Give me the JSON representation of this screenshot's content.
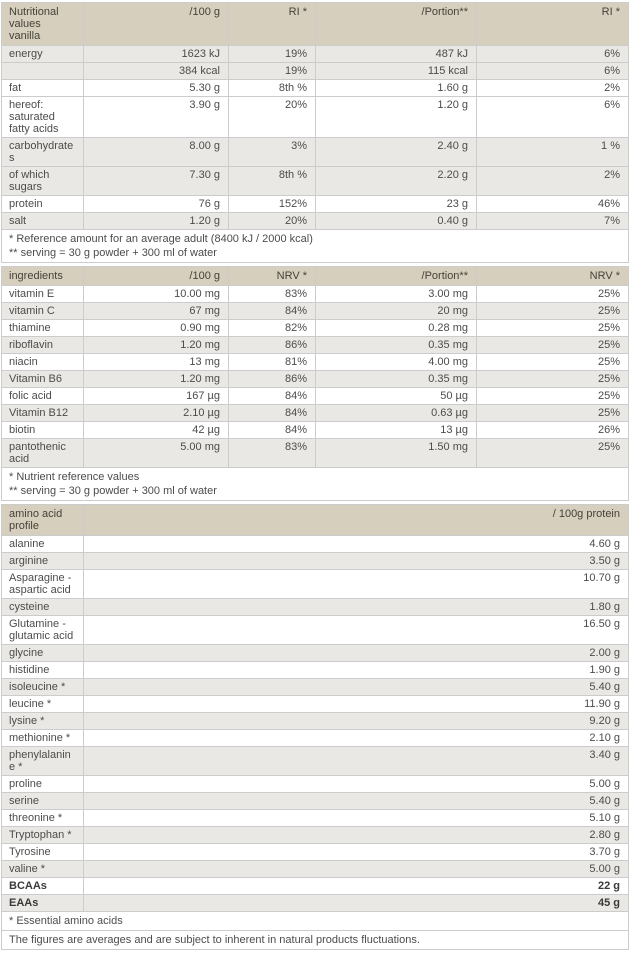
{
  "colors": {
    "header_bg": "#d7cfbd",
    "stripe_bg": "#e9e8e4",
    "row_bg": "#ffffff",
    "border": "#cccccc",
    "text": "#4c4c4c"
  },
  "tables": [
    {
      "name": "nutritional-values",
      "headers": [
        "Nutritional values vanilla",
        "/100 g",
        "RI *",
        "/Portion**",
        "RI *"
      ],
      "rows": [
        {
          "cells": [
            "energy",
            "1623 kJ",
            "19%",
            "487 kJ",
            "6%"
          ],
          "shaded": true,
          "bold": false
        },
        {
          "cells": [
            "",
            "384 kcal",
            "19%",
            "115 kcal",
            "6%"
          ],
          "shaded": true,
          "bold": false
        },
        {
          "cells": [
            "fat",
            "5.30 g",
            "8th %",
            "1.60 g",
            "2%"
          ],
          "shaded": false,
          "bold": false
        },
        {
          "cells": [
            "hereof: saturated fatty acids",
            "3.90 g",
            "20%",
            "1.20 g",
            "6%"
          ],
          "shaded": false,
          "bold": false
        },
        {
          "cells": [
            "carbohydrates",
            "8.00 g",
            "3%",
            "2.40 g",
            "1 %"
          ],
          "shaded": true,
          "bold": false
        },
        {
          "cells": [
            "of which sugars",
            "7.30 g",
            "8th %",
            "2.20 g",
            "2%"
          ],
          "shaded": true,
          "bold": false
        },
        {
          "cells": [
            "protein",
            "76 g",
            "152%",
            "23 g",
            "46%"
          ],
          "shaded": false,
          "bold": false
        },
        {
          "cells": [
            "salt",
            "1.20 g",
            "20%",
            "0.40 g",
            "7%"
          ],
          "shaded": true,
          "bold": false
        }
      ],
      "footnotes": [
        "* Reference amount for an average adult (8400 kJ / 2000 kcal)",
        "** serving = 30 g powder + 300 ml of water"
      ]
    },
    {
      "name": "ingredients",
      "headers": [
        "ingredients",
        "/100 g",
        "NRV *",
        "/Portion**",
        "NRV *"
      ],
      "rows": [
        {
          "cells": [
            "vitamin E",
            "10.00 mg",
            "83%",
            "3.00 mg",
            "25%"
          ],
          "shaded": false,
          "bold": false
        },
        {
          "cells": [
            "vitamin C",
            "67 mg",
            "84%",
            "20 mg",
            "25%"
          ],
          "shaded": true,
          "bold": false
        },
        {
          "cells": [
            "thiamine",
            "0.90 mg",
            "82%",
            "0.28 mg",
            "25%"
          ],
          "shaded": false,
          "bold": false
        },
        {
          "cells": [
            "riboflavin",
            "1.20 mg",
            "86%",
            "0.35 mg",
            "25%"
          ],
          "shaded": true,
          "bold": false
        },
        {
          "cells": [
            "niacin",
            "13 mg",
            "81%",
            "4.00 mg",
            "25%"
          ],
          "shaded": false,
          "bold": false
        },
        {
          "cells": [
            "Vitamin B6",
            "1.20 mg",
            "86%",
            "0.35 mg",
            "25%"
          ],
          "shaded": true,
          "bold": false
        },
        {
          "cells": [
            "folic acid",
            "167 µg",
            "84%",
            "50 µg",
            "25%"
          ],
          "shaded": false,
          "bold": false
        },
        {
          "cells": [
            "Vitamin B12",
            "2.10 µg",
            "84%",
            "0.63 µg",
            "25%"
          ],
          "shaded": true,
          "bold": false
        },
        {
          "cells": [
            "biotin",
            "42 µg",
            "84%",
            "13 µg",
            "26%"
          ],
          "shaded": false,
          "bold": false
        },
        {
          "cells": [
            "pantothenic acid",
            "5.00 mg",
            "83%",
            "1.50 mg",
            "25%"
          ],
          "shaded": true,
          "bold": false
        }
      ],
      "footnotes": [
        "* Nutrient reference values",
        "** serving = 30 g powder + 300 ml of water"
      ]
    },
    {
      "name": "amino-acid-profile",
      "headers": [
        "amino acid profile",
        "/ 100g protein"
      ],
      "rows": [
        {
          "cells": [
            "alanine",
            "4.60 g"
          ],
          "shaded": false,
          "bold": false
        },
        {
          "cells": [
            "arginine",
            "3.50 g"
          ],
          "shaded": true,
          "bold": false
        },
        {
          "cells": [
            "Asparagine - aspartic acid",
            "10.70 g"
          ],
          "shaded": false,
          "bold": false
        },
        {
          "cells": [
            "cysteine",
            "1.80 g"
          ],
          "shaded": true,
          "bold": false
        },
        {
          "cells": [
            "Glutamine - glutamic acid",
            "16.50 g"
          ],
          "shaded": false,
          "bold": false
        },
        {
          "cells": [
            "glycine",
            "2.00 g"
          ],
          "shaded": true,
          "bold": false
        },
        {
          "cells": [
            "histidine",
            "1.90 g"
          ],
          "shaded": false,
          "bold": false
        },
        {
          "cells": [
            "isoleucine *",
            "5.40 g"
          ],
          "shaded": true,
          "bold": false
        },
        {
          "cells": [
            "leucine *",
            "11.90 g"
          ],
          "shaded": false,
          "bold": false
        },
        {
          "cells": [
            "lysine *",
            "9.20 g"
          ],
          "shaded": true,
          "bold": false
        },
        {
          "cells": [
            "methionine *",
            "2.10 g"
          ],
          "shaded": false,
          "bold": false
        },
        {
          "cells": [
            "phenylalanine *",
            "3.40 g"
          ],
          "shaded": true,
          "bold": false
        },
        {
          "cells": [
            "proline",
            "5.00 g"
          ],
          "shaded": false,
          "bold": false
        },
        {
          "cells": [
            "serine",
            "5.40 g"
          ],
          "shaded": true,
          "bold": false
        },
        {
          "cells": [
            "threonine *",
            "5.10 g"
          ],
          "shaded": false,
          "bold": false
        },
        {
          "cells": [
            "Tryptophan *",
            "2.80 g"
          ],
          "shaded": true,
          "bold": false
        },
        {
          "cells": [
            "Tyrosine",
            "3.70 g"
          ],
          "shaded": false,
          "bold": false
        },
        {
          "cells": [
            "valine *",
            "5.00 g"
          ],
          "shaded": true,
          "bold": false
        },
        {
          "cells": [
            "BCAAs",
            "22 g"
          ],
          "shaded": false,
          "bold": true
        },
        {
          "cells": [
            "EAAs",
            "45 g"
          ],
          "shaded": true,
          "bold": true
        }
      ],
      "footnotes": [
        "* Essential amino acids",
        "The figures are averages and are subject to inherent in natural products fluctuations."
      ]
    }
  ]
}
